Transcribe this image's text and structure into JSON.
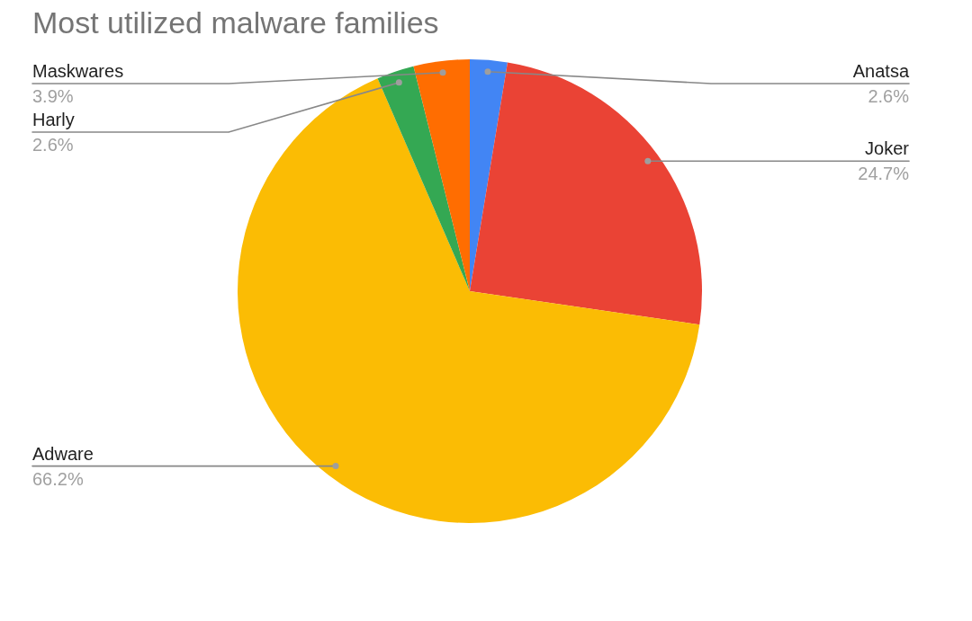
{
  "chart_data": {
    "type": "pie",
    "title": "Most utilized malware families",
    "categories": [
      "Anatsa",
      "Joker",
      "Adware",
      "Harly",
      "Maskwares"
    ],
    "values": [
      2.6,
      24.7,
      66.2,
      2.6,
      3.9
    ],
    "colors": [
      "#4285f4",
      "#ea4335",
      "#fbbc04",
      "#34a853",
      "#ff6d01"
    ],
    "value_labels": [
      "2.6%",
      "24.7%",
      "66.2%",
      "2.6%",
      "3.9%"
    ]
  }
}
